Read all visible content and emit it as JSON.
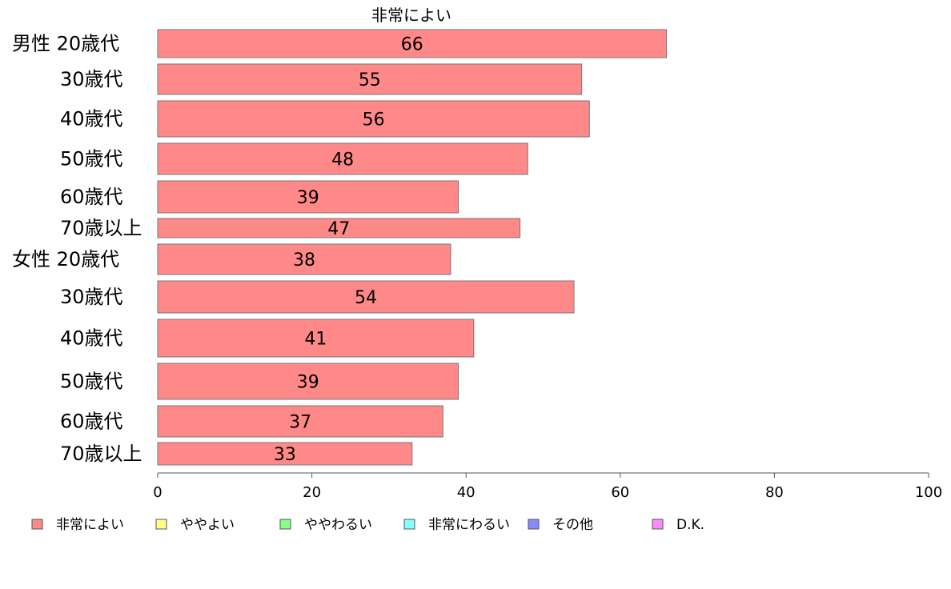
{
  "chart_data": {
    "type": "bar",
    "orientation": "horizontal",
    "title": "非常によい",
    "categories": [
      "男性 20歳代",
      "30歳代",
      "40歳代",
      "50歳代",
      "60歳代",
      "70歳以上",
      "女性 20歳代",
      "30歳代",
      "40歳代",
      "50歳代",
      "60歳代",
      "70歳以上"
    ],
    "series": [
      {
        "name": "非常によい",
        "color": "#ff8888",
        "values": [
          66,
          55,
          56,
          48,
          39,
          47,
          38,
          54,
          41,
          39,
          37,
          33
        ]
      }
    ],
    "data_labels": [
      "66",
      "55",
      "56",
      "48",
      "39",
      "47",
      "38",
      "54",
      "41",
      "39",
      "37",
      "33"
    ],
    "xlim": [
      0,
      100
    ],
    "xticks": [
      0,
      20,
      40,
      60,
      80,
      100
    ],
    "legend": {
      "position": "bottom",
      "entries": [
        {
          "label": "非常によい",
          "color": "#ff8888"
        },
        {
          "label": "ややよい",
          "color": "#ffff88"
        },
        {
          "label": "ややわるい",
          "color": "#88ff88"
        },
        {
          "label": "非常にわるい",
          "color": "#88ffff"
        },
        {
          "label": "その他",
          "color": "#8888ff"
        },
        {
          "label": "D.K.",
          "color": "#ff88ff"
        }
      ]
    }
  }
}
